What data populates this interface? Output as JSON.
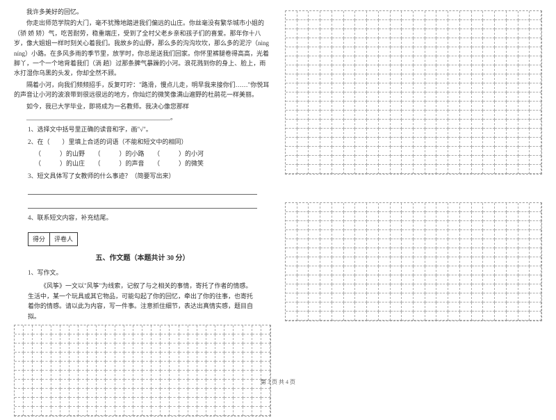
{
  "passage": {
    "p1": "我许多美好的回忆。",
    "p2": "你走出师范学院的大门，毫不犹豫地踏进我们偏远的山庄。你丝毫没有繁华城市小姐的（骄 娇 矫）气，吃苦耐劳，稳重端庄，受到了全村父老乡亲和孩子们的喜爱。那年你十八岁，像大姐姐一样时刻关心着我们。我故乡的山野，那么多的沟沟坎坎，那么多的泥泞（nìng níng）小路。在多风多雨的季节里，放学时，你总是送我们回家。你怀里裤腿卷得高高，光着脚丫，一个一个地背着我们（淌 趟）过那条脾气暴躁的小河。浪花溅到你的身上、脸上，雨水打湿你乌黑的头发，你却全然不顾。",
    "p3": "隔着小河，向我们频频招手，反复叮咛：\"路滑，慢点儿走，明早我来接你们……\"你悦耳的声音让小河的波浪带到很远很远的地方，你灿烂的微笑像满山遍野的杜鹃花一样美丽。",
    "p4": "如今，我已大学毕业，即将成为一名教师。我决心像您那样",
    "p5_blank": "______________________________________________。"
  },
  "questions": {
    "q1": "1、选择文中括号里正确的读音和字，画\"√\"。",
    "q2": "2、在（　　）里填上合适的词语（不能和短文中的相同）",
    "q2a": "（　　　）的山野　　（　　　）的小路　　（　　　）的小河",
    "q2b": "（　　　）的山庄　　（　　　）的声音　　（　　　）的微笑",
    "q3": "3、短文具体写了女教师的什么事迹？（简要写出来）",
    "q4": "4、联系短文内容，补充结尾。"
  },
  "scoreLabels": {
    "score": "得分",
    "grader": "评卷人"
  },
  "section5": {
    "title": "五、作文题（本题共计 30 分）",
    "num": "1、写作文。",
    "intro": "《风筝》一文以\"风筝\"为线索，记叙了与之相关的事情，寄托了作者的情感。生活中，某一个玩具或其它物品，可能勾起了你的回忆，牵出了你的往事，也寄托着你的情感。请以此为内容，写一件事。注意抓住细节，表达出真情实感，题目自拟。"
  },
  "grids": {
    "left_bottom": {
      "rows": 10,
      "cols": 28
    },
    "right_top": {
      "rows": 18,
      "cols": 22
    },
    "right_bottom": {
      "rows": 13,
      "cols": 22
    }
  },
  "footer": "第 3 页 共 4 页",
  "colors": {
    "text": "#333333",
    "border": "#999999",
    "bg": "#ffffff"
  }
}
